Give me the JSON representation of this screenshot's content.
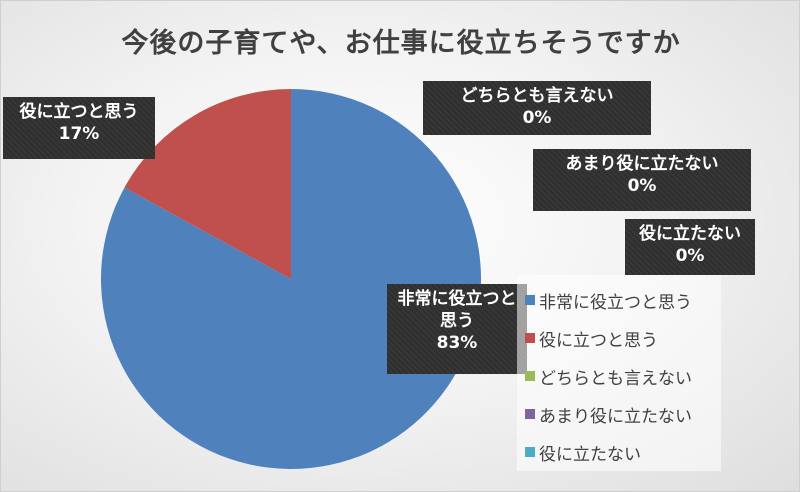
{
  "chart_data": {
    "type": "pie",
    "title": "今後の子育てや、お仕事に役立ちそうですか",
    "slices": [
      {
        "label": "非常に役立つと思う",
        "value": 83,
        "value_text": "83%",
        "color": "#4f81bd"
      },
      {
        "label": "役に立つと思う",
        "value": 17,
        "value_text": "17%",
        "color": "#c0504d"
      },
      {
        "label": "どちらとも言えない",
        "value": 0,
        "value_text": "0%",
        "color": "#9bbb59"
      },
      {
        "label": "あまり役に立たない",
        "value": 0,
        "value_text": "0%",
        "color": "#8064a2"
      },
      {
        "label": "役に立たない",
        "value": 0,
        "value_text": "0%",
        "color": "#4bacc6"
      }
    ],
    "legend_position": "right",
    "label_style": "dark callout boxes"
  },
  "callout_lines": [
    [
      "非常に役立つと",
      "思う"
    ],
    [
      "役に立つと思う"
    ],
    [
      "どちらとも言えない"
    ],
    [
      "あまり役に立たない"
    ],
    [
      "役に立たない"
    ]
  ]
}
